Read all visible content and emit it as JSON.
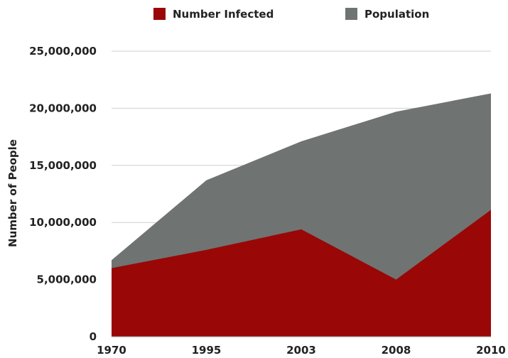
{
  "chart_data": {
    "type": "area",
    "title": "",
    "xlabel": "",
    "ylabel": "Number of People",
    "ylim": [
      0,
      25000000
    ],
    "yticks": [
      0,
      5000000,
      10000000,
      15000000,
      20000000,
      25000000
    ],
    "ytick_labels": [
      "0",
      "5,000,000",
      "10,000,000",
      "15,000,000",
      "20,000,000",
      "25,000,000"
    ],
    "categories": [
      "1970",
      "1995",
      "2003",
      "2008",
      "2010"
    ],
    "grid": true,
    "legend_position": "top",
    "series": [
      {
        "name": "Number Infected",
        "color": "#990707",
        "values": [
          6000000,
          7600000,
          9400000,
          5000000,
          11100000
        ]
      },
      {
        "name": "Population",
        "color": "#6f7371",
        "values": [
          6700000,
          13700000,
          17100000,
          19700000,
          21300000
        ]
      }
    ]
  }
}
